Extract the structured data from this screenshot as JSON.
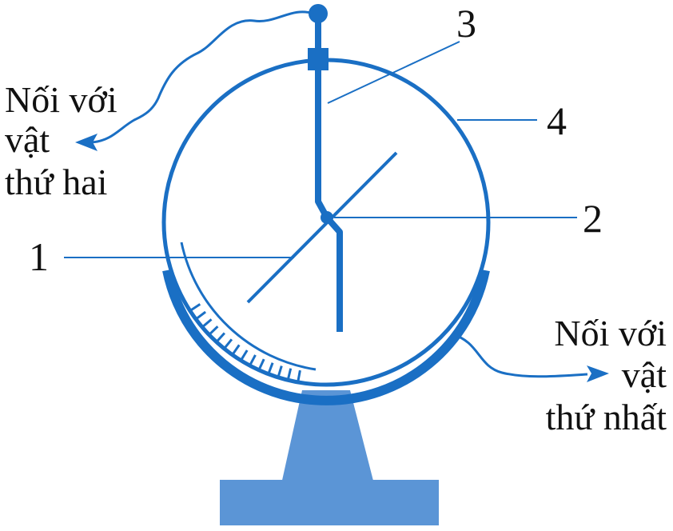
{
  "diagram": {
    "labels": {
      "part_1": "1",
      "part_2": "2",
      "part_3": "3",
      "part_4": "4"
    },
    "left_note": [
      "Nối với",
      "vật",
      "thứ hai"
    ],
    "right_note": [
      "Nối với",
      "vật",
      "thứ nhất"
    ]
  },
  "colors": {
    "line": "#1a6fc4",
    "stand": "#5b95d6",
    "text": "#111111"
  }
}
